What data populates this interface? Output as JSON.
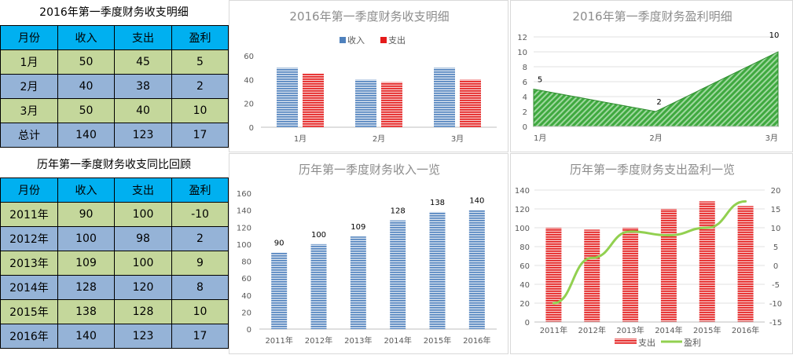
{
  "table1": {
    "title": "2016年第一季度财务收支明细",
    "headers": [
      "月份",
      "收入",
      "支出",
      "盈利"
    ],
    "rows": [
      [
        "1月",
        "50",
        "45",
        "5"
      ],
      [
        "2月",
        "40",
        "38",
        "2"
      ],
      [
        "3月",
        "50",
        "40",
        "10"
      ],
      [
        "总计",
        "140",
        "123",
        "17"
      ]
    ]
  },
  "table2": {
    "title": "历年第一季度财务收支同比回顾",
    "headers": [
      "月份",
      "收入",
      "支出",
      "盈利"
    ],
    "rows": [
      [
        "2011年",
        "90",
        "100",
        "-10"
      ],
      [
        "2012年",
        "100",
        "98",
        "2"
      ],
      [
        "2013年",
        "109",
        "100",
        "9"
      ],
      [
        "2014年",
        "128",
        "120",
        "8"
      ],
      [
        "2015年",
        "138",
        "128",
        "10"
      ],
      [
        "2016年",
        "140",
        "123",
        "17"
      ]
    ]
  },
  "colors": {
    "income": "#4f81bd",
    "expense": "#e41b1b",
    "profit_fill": "#3fa93f",
    "profit_line": "#92d050"
  },
  "chart_data": [
    {
      "type": "bar",
      "title": "2016年第一季度财务收支明细",
      "categories": [
        "1月",
        "2月",
        "3月"
      ],
      "series": [
        {
          "name": "收入",
          "values": [
            50,
            40,
            50
          ]
        },
        {
          "name": "支出",
          "values": [
            45,
            38,
            40
          ]
        }
      ],
      "ylim": [
        0,
        60
      ],
      "yticks": [
        0,
        20,
        40,
        60
      ],
      "legend": "top"
    },
    {
      "type": "area",
      "title": "2016年第一季度财务盈利明细",
      "categories": [
        "1月",
        "2月",
        "3月"
      ],
      "values": [
        5,
        2,
        10
      ],
      "ylim": [
        0,
        12
      ],
      "yticks": [
        0,
        2,
        4,
        6,
        8,
        10,
        12
      ],
      "grid": true
    },
    {
      "type": "bar",
      "title": "历年第一季度财务收入一览",
      "categories": [
        "2011年",
        "2012年",
        "2013年",
        "2014年",
        "2015年",
        "2016年"
      ],
      "values": [
        90,
        100,
        109,
        128,
        138,
        140
      ],
      "ylim": [
        0,
        160
      ],
      "yticks": [
        0,
        20,
        40,
        60,
        80,
        100,
        120,
        140,
        160
      ]
    },
    {
      "type": "bar",
      "title": "历年第一季度财务支出盈利一览",
      "categories": [
        "2011年",
        "2012年",
        "2013年",
        "2014年",
        "2015年",
        "2016年"
      ],
      "series": [
        {
          "name": "支出",
          "type": "bar",
          "axis": "left",
          "values": [
            100,
            98,
            100,
            120,
            128,
            123
          ]
        },
        {
          "name": "盈利",
          "type": "line",
          "axis": "right",
          "values": [
            -10,
            2,
            9,
            8,
            10,
            17
          ]
        }
      ],
      "ylim": [
        0,
        140
      ],
      "yticks": [
        0,
        20,
        40,
        60,
        80,
        100,
        120,
        140
      ],
      "y2lim": [
        -15,
        20
      ],
      "y2ticks": [
        -15,
        -10,
        -5,
        0,
        5,
        10,
        15,
        20
      ],
      "grid": true,
      "legend": "bottom"
    }
  ]
}
